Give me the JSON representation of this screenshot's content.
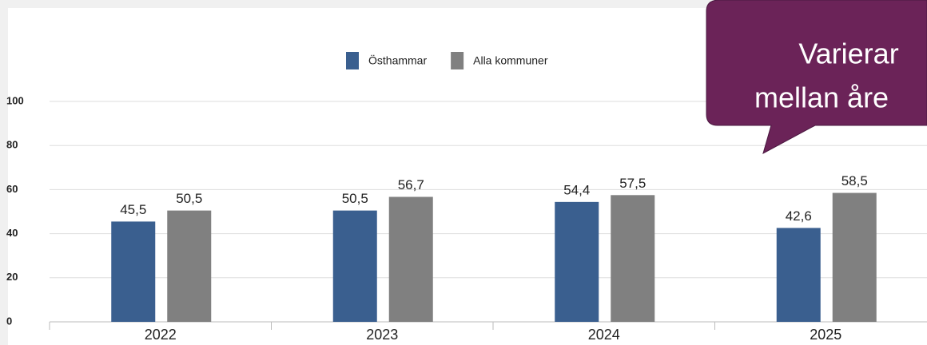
{
  "chart_data": {
    "type": "bar",
    "categories": [
      "2022",
      "2023",
      "2024",
      "2025"
    ],
    "series": [
      {
        "name": "Östhammar",
        "color": "#3a5f8f",
        "values": [
          45.5,
          50.5,
          54.4,
          42.6
        ],
        "value_labels": [
          "45,5",
          "50,5",
          "54,4",
          "42,6"
        ]
      },
      {
        "name": "Alla kommuner",
        "color": "#808080",
        "values": [
          50.5,
          56.7,
          57.5,
          58.5
        ],
        "value_labels": [
          "50,5",
          "56,7",
          "57,5",
          "58,5"
        ]
      }
    ],
    "ylim": [
      0,
      100
    ],
    "yticks": [
      0,
      20,
      40,
      60,
      80,
      100
    ],
    "grid": true,
    "legend": "top"
  },
  "callout": {
    "lines": [
      "Varierar",
      "mellan åre"
    ]
  }
}
